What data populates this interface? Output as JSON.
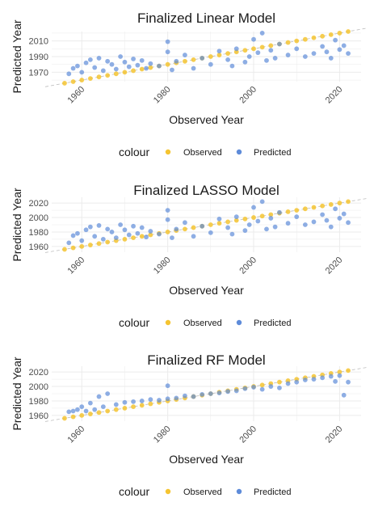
{
  "colors": {
    "observed": "#f5c431",
    "predicted": "#5e8bd9",
    "grid": "#ebebeb",
    "diag": "#bdbdbd"
  },
  "legend": {
    "title": "colour",
    "items": [
      "Observed",
      "Predicted"
    ]
  },
  "chart_data": [
    {
      "type": "scatter",
      "title": "Finalized Linear Model",
      "xlabel": "Observed Year",
      "ylabel": "Predicted Year",
      "xlim": [
        1953,
        2025
      ],
      "ylim": [
        1958,
        2022
      ],
      "xticks": [
        1960,
        1980,
        2000,
        2020
      ],
      "yticks": [
        1970,
        1990,
        2010
      ],
      "series": [
        {
          "name": "Observed",
          "x": [
            1956,
            1958,
            1960,
            1962,
            1964,
            1966,
            1968,
            1970,
            1972,
            1974,
            1976,
            1978,
            1980,
            1982,
            1984,
            1986,
            1988,
            1990,
            1992,
            1994,
            1996,
            1998,
            2000,
            2002,
            2004,
            2006,
            2008,
            2010,
            2012,
            2014,
            2016,
            2018,
            2020,
            2022
          ],
          "y": [
            1956,
            1958,
            1960,
            1962,
            1964,
            1966,
            1968,
            1970,
            1972,
            1974,
            1976,
            1978,
            1980,
            1982,
            1984,
            1986,
            1988,
            1990,
            1992,
            1994,
            1996,
            1998,
            2000,
            2002,
            2004,
            2006,
            2008,
            2010,
            2012,
            2014,
            2016,
            2018,
            2020,
            2022
          ]
        },
        {
          "name": "Predicted",
          "x": [
            1957,
            1958,
            1959,
            1960,
            1961,
            1962,
            1963,
            1964,
            1965,
            1966,
            1967,
            1968,
            1969,
            1970,
            1971,
            1972,
            1973,
            1974,
            1975,
            1976,
            1978,
            1980,
            1980,
            1981,
            1982,
            1984,
            1986,
            1988,
            1990,
            1992,
            1994,
            1995,
            1996,
            1998,
            1999,
            2000,
            2001,
            2002,
            2003,
            2004,
            2005,
            2006,
            2008,
            2010,
            2012,
            2014,
            2016,
            2017,
            2018,
            2019,
            2020,
            2021,
            2022
          ],
          "y": [
            1968,
            1975,
            1978,
            1970,
            1982,
            1986,
            1976,
            1988,
            1972,
            1984,
            1980,
            1974,
            1990,
            1983,
            1977,
            1987,
            1979,
            1985,
            1975,
            1981,
            1978,
            2009,
            1996,
            1973,
            1984,
            1992,
            1975,
            1988,
            1980,
            1997,
            1986,
            1978,
            2000,
            1983,
            1990,
            2012,
            1995,
            2020,
            1985,
            1998,
            1988,
            2006,
            1992,
            2000,
            1990,
            1994,
            2003,
            1996,
            1988,
            2011,
            1999,
            2004,
            1994
          ]
        }
      ]
    },
    {
      "type": "scatter",
      "title": "Finalized LASSO Model",
      "xlabel": "Observed Year",
      "ylabel": "Predicted Year",
      "xlim": [
        1953,
        2025
      ],
      "ylim": [
        1952,
        2028
      ],
      "xticks": [
        1960,
        1980,
        2000,
        2020
      ],
      "yticks": [
        1960,
        1980,
        2000,
        2020
      ],
      "series": [
        {
          "name": "Observed",
          "x": [
            1956,
            1958,
            1960,
            1962,
            1964,
            1966,
            1968,
            1970,
            1972,
            1974,
            1976,
            1978,
            1980,
            1982,
            1984,
            1986,
            1988,
            1990,
            1992,
            1994,
            1996,
            1998,
            2000,
            2002,
            2004,
            2006,
            2008,
            2010,
            2012,
            2014,
            2016,
            2018,
            2020,
            2022
          ],
          "y": [
            1956,
            1958,
            1960,
            1962,
            1964,
            1966,
            1968,
            1970,
            1972,
            1974,
            1976,
            1978,
            1980,
            1982,
            1984,
            1986,
            1988,
            1990,
            1992,
            1994,
            1996,
            1998,
            2000,
            2002,
            2004,
            2006,
            2008,
            2010,
            2012,
            2014,
            2016,
            2018,
            2020,
            2022
          ]
        },
        {
          "name": "Predicted",
          "x": [
            1957,
            1958,
            1959,
            1960,
            1961,
            1962,
            1963,
            1964,
            1965,
            1966,
            1967,
            1968,
            1969,
            1970,
            1971,
            1972,
            1973,
            1974,
            1975,
            1976,
            1978,
            1980,
            1980,
            1981,
            1982,
            1984,
            1986,
            1988,
            1990,
            1992,
            1994,
            1995,
            1996,
            1998,
            1999,
            2000,
            2001,
            2002,
            2003,
            2004,
            2005,
            2006,
            2008,
            2010,
            2012,
            2014,
            2016,
            2017,
            2018,
            2019,
            2020,
            2021,
            2022
          ],
          "y": [
            1965,
            1975,
            1978,
            1968,
            1983,
            1987,
            1974,
            1989,
            1970,
            1984,
            1980,
            1972,
            1990,
            1983,
            1976,
            1988,
            1978,
            1986,
            1973,
            1981,
            1977,
            2010,
            1997,
            1972,
            1984,
            1993,
            1974,
            1988,
            1979,
            1998,
            1986,
            1977,
            2001,
            1982,
            1990,
            2014,
            1995,
            2022,
            1984,
            1999,
            1987,
            2007,
            1992,
            2001,
            1990,
            1994,
            2004,
            1996,
            1987,
            2012,
            1999,
            2005,
            1993
          ]
        }
      ]
    },
    {
      "type": "scatter",
      "title": "Finalized RF Model",
      "xlabel": "Observed Year",
      "ylabel": "Predicted Year",
      "xlim": [
        1953,
        2025
      ],
      "ylim": [
        1952,
        2028
      ],
      "xticks": [
        1960,
        1980,
        2000,
        2020
      ],
      "yticks": [
        1960,
        1980,
        2000,
        2020
      ],
      "series": [
        {
          "name": "Observed",
          "x": [
            1956,
            1958,
            1960,
            1962,
            1964,
            1966,
            1968,
            1970,
            1972,
            1974,
            1976,
            1978,
            1980,
            1982,
            1984,
            1986,
            1988,
            1990,
            1992,
            1994,
            1996,
            1998,
            2000,
            2002,
            2004,
            2006,
            2008,
            2010,
            2012,
            2014,
            2016,
            2018,
            2020,
            2022
          ],
          "y": [
            1956,
            1958,
            1960,
            1962,
            1964,
            1966,
            1968,
            1970,
            1972,
            1974,
            1976,
            1978,
            1980,
            1982,
            1984,
            1986,
            1988,
            1990,
            1992,
            1994,
            1996,
            1998,
            2000,
            2002,
            2004,
            2006,
            2008,
            2010,
            2012,
            2014,
            2016,
            2018,
            2020,
            2022
          ]
        },
        {
          "name": "Predicted",
          "x": [
            1957,
            1958,
            1959,
            1960,
            1961,
            1962,
            1963,
            1964,
            1965,
            1966,
            1968,
            1970,
            1972,
            1974,
            1976,
            1978,
            1980,
            1980,
            1982,
            1984,
            1986,
            1988,
            1990,
            1992,
            1994,
            1996,
            1998,
            2000,
            2002,
            2004,
            2006,
            2008,
            2010,
            2012,
            2014,
            2016,
            2018,
            2019,
            2020,
            2021,
            2022
          ],
          "y": [
            1965,
            1966,
            1968,
            1972,
            1966,
            1977,
            1968,
            1986,
            1972,
            1990,
            1975,
            1978,
            1979,
            1980,
            1982,
            1981,
            2001,
            1983,
            1984,
            1987,
            1986,
            1989,
            1990,
            1991,
            1993,
            1994,
            1997,
            1999,
            1996,
            2000,
            1998,
            2004,
            2006,
            2009,
            2010,
            2012,
            2014,
            2007,
            2015,
            1988,
            2006
          ]
        }
      ]
    }
  ]
}
